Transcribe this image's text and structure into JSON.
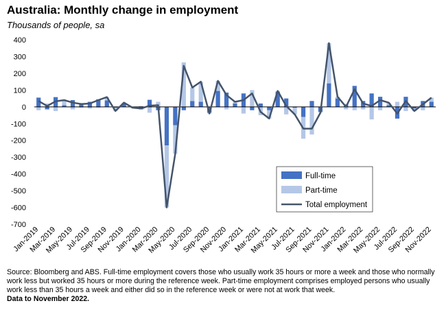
{
  "chart_data": {
    "type": "bar",
    "title": "Australia: Monthly change in employment",
    "subtitle": "Thousands of people, sa",
    "xlabel": "",
    "ylabel": "",
    "ylim": [
      -700,
      400
    ],
    "yticks": [
      400,
      300,
      200,
      100,
      0,
      -100,
      -200,
      -300,
      -400,
      -500,
      -600,
      -700
    ],
    "grid": false,
    "legend_position": "bottom-right",
    "stacked": true,
    "x": [
      "Jan-2019",
      "Feb-2019",
      "Mar-2019",
      "Apr-2019",
      "May-2019",
      "Jun-2019",
      "Jul-2019",
      "Aug-2019",
      "Sep-2019",
      "Oct-2019",
      "Nov-2019",
      "Dec-2019",
      "Jan-2020",
      "Feb-2020",
      "Mar-2020",
      "Apr-2020",
      "May-2020",
      "Jun-2020",
      "Jul-2020",
      "Aug-2020",
      "Sep-2020",
      "Oct-2020",
      "Nov-2020",
      "Dec-2020",
      "Jan-2021",
      "Feb-2021",
      "Mar-2021",
      "Apr-2021",
      "May-2021",
      "Jun-2021",
      "Jul-2021",
      "Aug-2021",
      "Sep-2021",
      "Oct-2021",
      "Nov-2021",
      "Dec-2021",
      "Jan-2022",
      "Feb-2022",
      "Mar-2022",
      "Apr-2022",
      "May-2022",
      "Jun-2022",
      "Jul-2022",
      "Aug-2022",
      "Sep-2022",
      "Oct-2022",
      "Nov-2022"
    ],
    "x_tick_labels": [
      "Jan-2019",
      "Mar-2019",
      "May-2019",
      "Jul-2019",
      "Sep-2019",
      "Nov-2019",
      "Jan-2020",
      "Mar-2020",
      "May-2020",
      "Jul-2020",
      "Sep-2020",
      "Nov-2020",
      "Jan-2021",
      "Mar-2021",
      "May-2021",
      "Jul-2021",
      "Sep-2021",
      "Nov-2021",
      "Jan-2022",
      "Mar-2022",
      "May-2022",
      "Jul-2022",
      "Sep-2022",
      "Nov-2022"
    ],
    "series": [
      {
        "name": "Full-time",
        "kind": "bar",
        "color": "#4472C4",
        "values": [
          55,
          -15,
          58,
          10,
          40,
          22,
          30,
          45,
          38,
          -5,
          20,
          0,
          -15,
          42,
          -20,
          -230,
          -110,
          -20,
          35,
          30,
          -35,
          95,
          85,
          20,
          80,
          -20,
          20,
          -20,
          90,
          50,
          -5,
          -60,
          35,
          -30,
          140,
          50,
          15,
          125,
          35,
          80,
          60,
          10,
          -70,
          60,
          -10,
          35,
          30
        ]
      },
      {
        "name": "Part-time",
        "kind": "bar",
        "color": "#B4C7E7",
        "values": [
          -20,
          20,
          -25,
          30,
          -15,
          -5,
          -10,
          -5,
          20,
          -20,
          5,
          -5,
          5,
          -35,
          30,
          -370,
          -170,
          265,
          80,
          120,
          -5,
          60,
          -15,
          10,
          -40,
          100,
          -50,
          -50,
          5,
          -45,
          -40,
          -130,
          -165,
          -5,
          240,
          10,
          -15,
          -20,
          -15,
          -75,
          -20,
          15,
          30,
          -25,
          -15,
          -20,
          25
        ]
      },
      {
        "name": "Total employment",
        "kind": "line",
        "color": "#44546A",
        "values": [
          35,
          5,
          33,
          40,
          25,
          17,
          20,
          40,
          58,
          -25,
          25,
          -5,
          -10,
          7,
          10,
          -600,
          -280,
          245,
          115,
          150,
          -40,
          155,
          70,
          30,
          40,
          80,
          -30,
          -70,
          95,
          5,
          -45,
          -130,
          -130,
          -35,
          380,
          60,
          0,
          105,
          20,
          5,
          40,
          25,
          -40,
          35,
          -25,
          15,
          55
        ]
      }
    ]
  },
  "source": {
    "text": "Source: Bloomberg and ABS.  Full-time employment covers those who usually work 35 hours or more a week and those who normally work less but worked 35 hours or  more during the reference week.  Part-time employment comprises employed persons who usually work less than 35 hours a week and either did so in the reference week or were not at work that week.",
    "note": "Data to November 2022."
  }
}
